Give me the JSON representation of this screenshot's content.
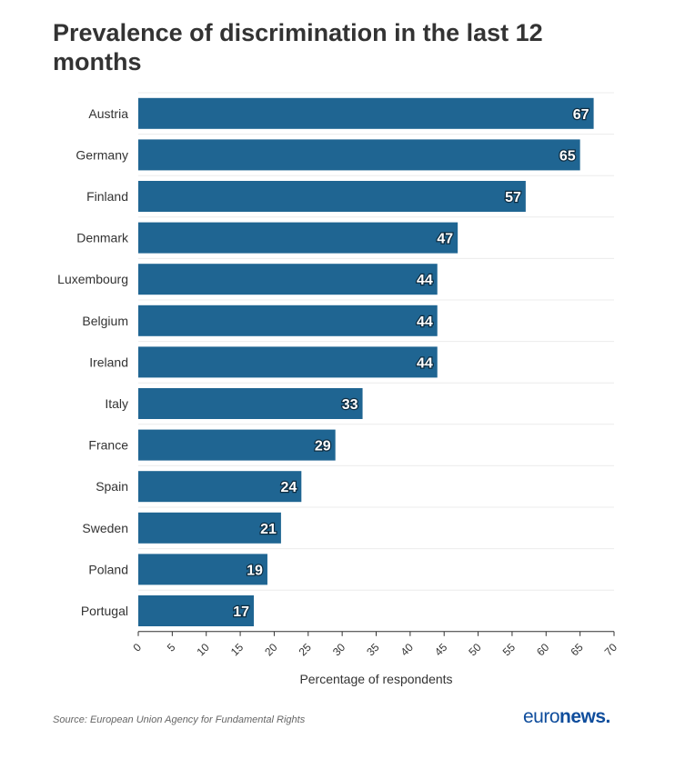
{
  "chart_data": {
    "type": "bar",
    "orientation": "horizontal",
    "title": "Prevalence of discrimination in the last 12 months",
    "categories": [
      "Austria",
      "Germany",
      "Finland",
      "Denmark",
      "Luxembourg",
      "Belgium",
      "Ireland",
      "Italy",
      "France",
      "Spain",
      "Sweden",
      "Poland",
      "Portugal"
    ],
    "values": [
      67,
      65,
      57,
      47,
      44,
      44,
      44,
      33,
      29,
      24,
      21,
      19,
      17
    ],
    "xlabel": "Percentage of respondents",
    "ylabel": "",
    "xlim": [
      0,
      70
    ],
    "xticks": [
      "0",
      "5",
      "10",
      "15",
      "20",
      "25",
      "30",
      "35",
      "40",
      "45",
      "50",
      "55",
      "60",
      "65",
      "70"
    ],
    "grid": true,
    "bar_color": "#1f6592",
    "source": "Source: European Union Agency for Fundamental Rights"
  },
  "logo": {
    "part1": "euro",
    "part2": "news."
  }
}
